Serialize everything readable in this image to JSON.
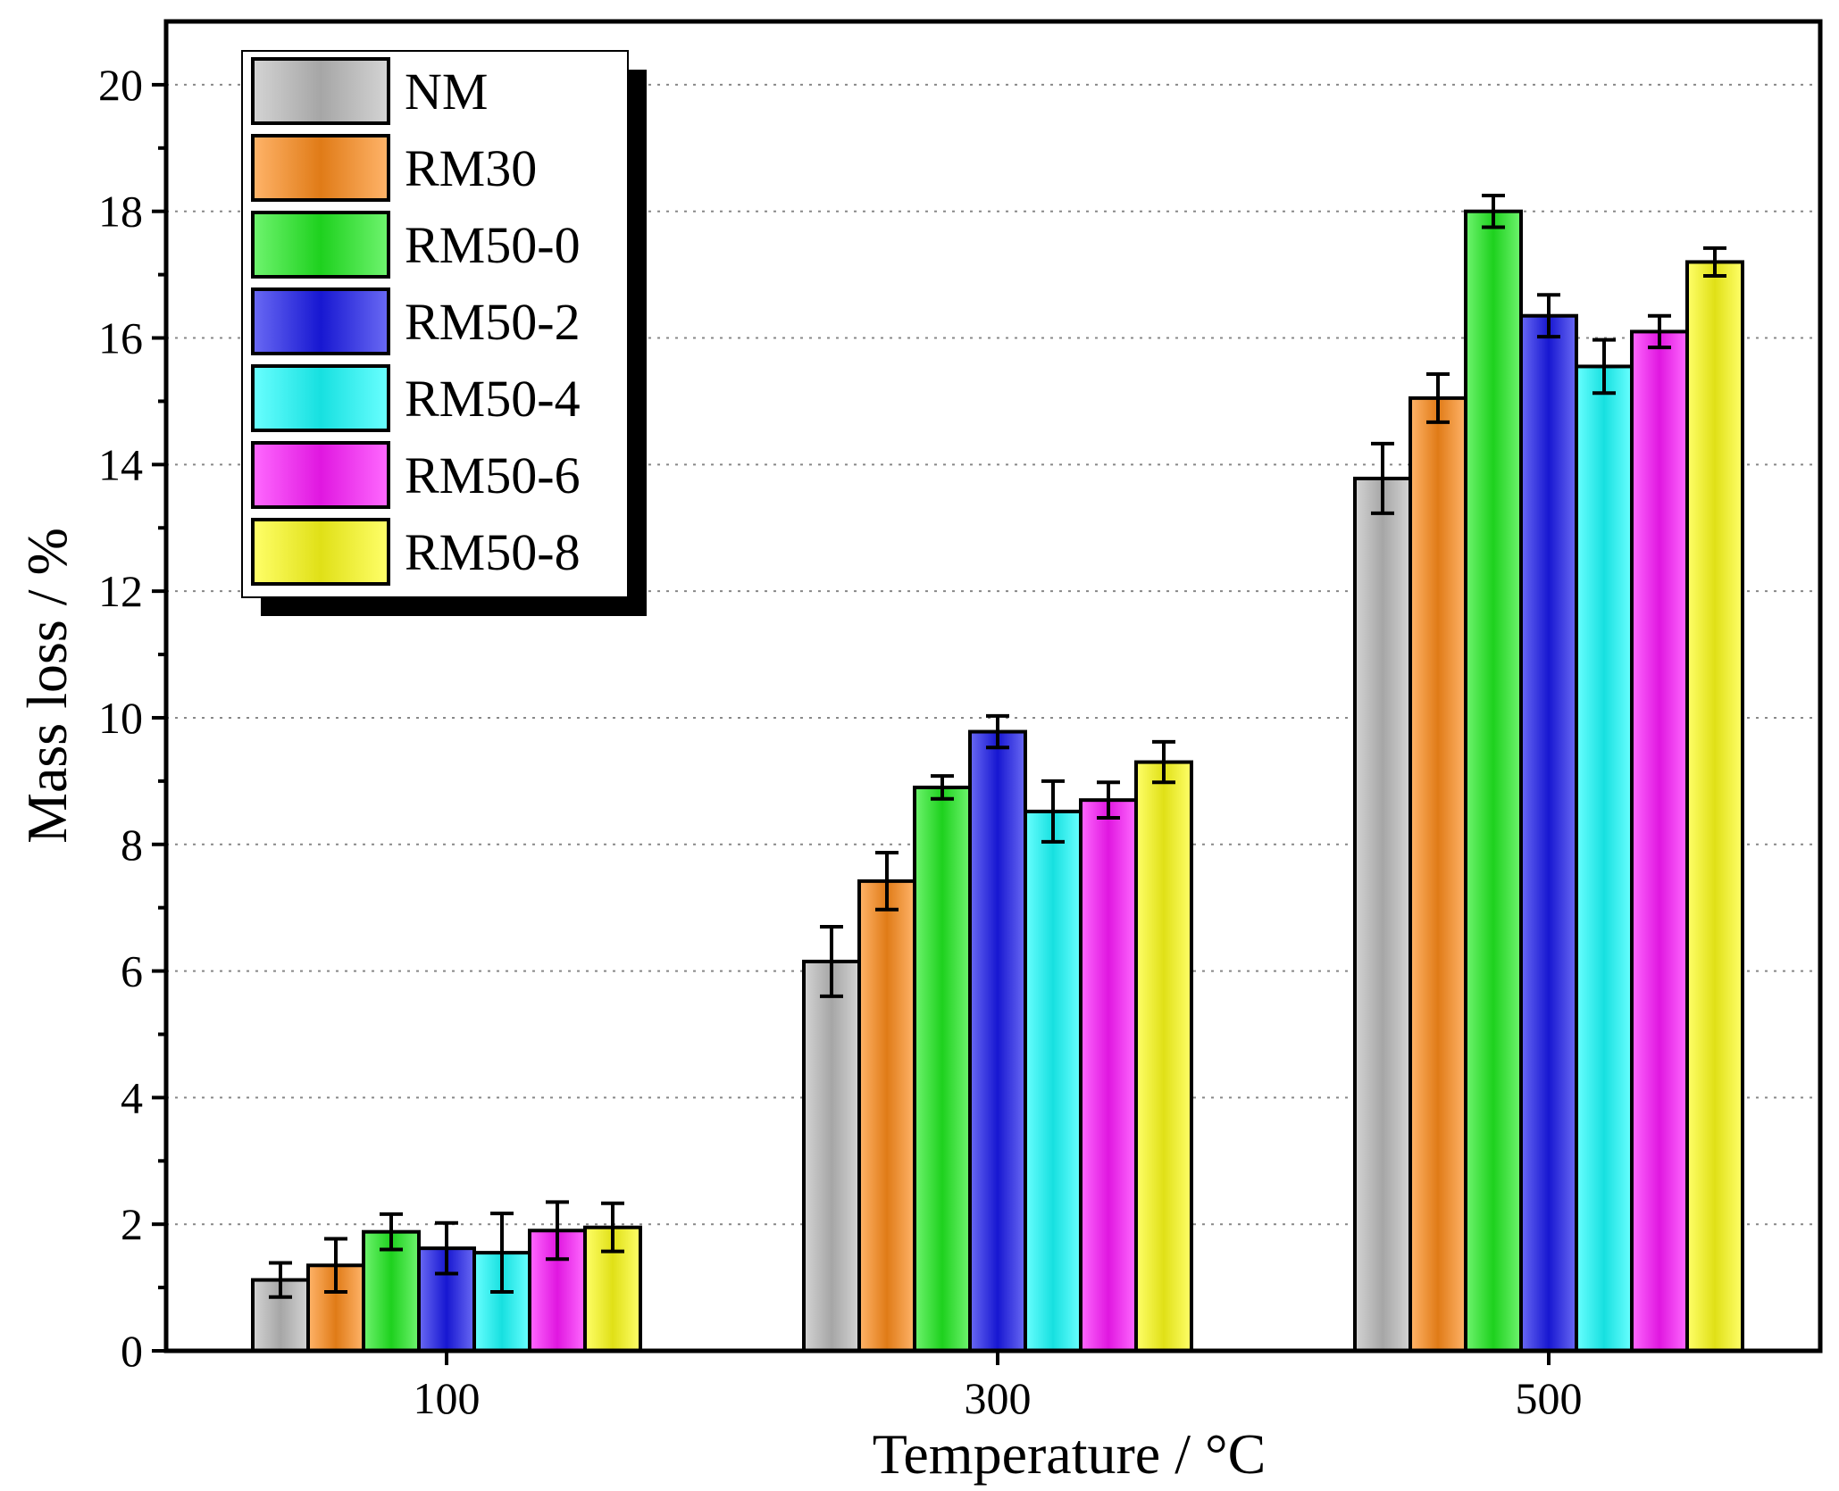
{
  "chart_data": {
    "type": "bar",
    "title": "",
    "xlabel": "Temperature / °C",
    "ylabel": "Mass loss / %",
    "ylim": [
      0,
      21
    ],
    "yticks": [
      "0",
      "2",
      "4",
      "6",
      "8",
      "10",
      "12",
      "14",
      "16",
      "18",
      "20"
    ],
    "grid": "horizontal dotted",
    "legend_position": "top-left",
    "categories": [
      "100",
      "300",
      "500"
    ],
    "series": [
      {
        "name": "NM",
        "color": "#bdbdbd",
        "values": [
          1.12,
          6.15,
          13.78
        ],
        "errors": [
          0.27,
          0.55,
          0.55
        ]
      },
      {
        "name": "RM30",
        "color": "#ff8c1a",
        "values": [
          1.35,
          7.42,
          15.05
        ],
        "errors": [
          0.42,
          0.45,
          0.38
        ]
      },
      {
        "name": "RM50-0",
        "color": "#22ee22",
        "values": [
          1.88,
          8.9,
          18.0
        ],
        "errors": [
          0.28,
          0.18,
          0.25
        ]
      },
      {
        "name": "RM50-2",
        "color": "#1a1aee",
        "values": [
          1.62,
          9.78,
          16.35
        ],
        "errors": [
          0.4,
          0.25,
          0.33
        ]
      },
      {
        "name": "RM50-4",
        "color": "#1affff",
        "values": [
          1.55,
          8.52,
          15.55
        ],
        "errors": [
          0.62,
          0.48,
          0.42
        ]
      },
      {
        "name": "RM50-6",
        "color": "#ff1aff",
        "values": [
          1.9,
          8.7,
          16.1
        ],
        "errors": [
          0.45,
          0.28,
          0.25
        ]
      },
      {
        "name": "RM50-8",
        "color": "#ffff1a",
        "values": [
          1.95,
          9.3,
          17.2
        ],
        "errors": [
          0.38,
          0.32,
          0.22
        ]
      }
    ]
  }
}
